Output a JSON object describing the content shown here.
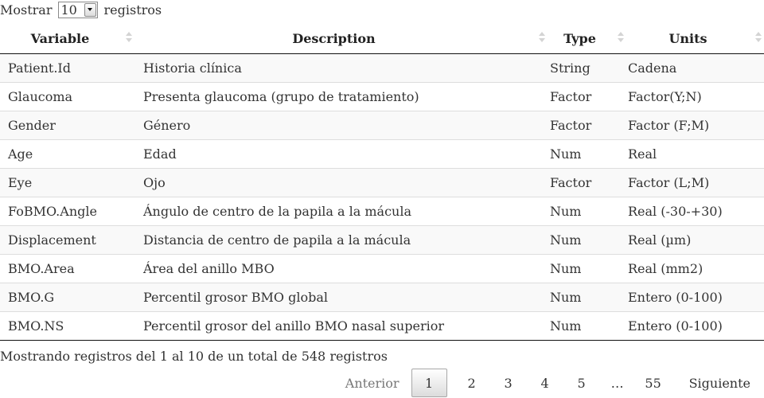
{
  "length_menu": {
    "prefix": "Mostrar",
    "selected": "10",
    "suffix": "registros"
  },
  "table": {
    "columns": [
      "Variable",
      "Description",
      "Type",
      "Units"
    ],
    "rows": [
      [
        "Patient.Id",
        "Historia clínica",
        "String",
        "Cadena"
      ],
      [
        "Glaucoma",
        "Presenta glaucoma (grupo de tratamiento)",
        "Factor",
        "Factor(Y;N)"
      ],
      [
        "Gender",
        "Género",
        "Factor",
        "Factor (F;M)"
      ],
      [
        "Age",
        "Edad",
        "Num",
        "Real"
      ],
      [
        "Eye",
        "Ojo",
        "Factor",
        "Factor (L;M)"
      ],
      [
        "FoBMO.Angle",
        "Ángulo de centro de la papila a la mácula",
        "Num",
        "Real (-30-+30)"
      ],
      [
        "Displacement",
        "Distancia de centro de papila a la mácula",
        "Num",
        "Real (µm)"
      ],
      [
        "BMO.Area",
        "Área del anillo MBO",
        "Num",
        "Real (mm2)"
      ],
      [
        "BMO.G",
        "Percentil grosor BMO global",
        "Num",
        "Entero (0-100)"
      ],
      [
        "BMO.NS",
        "Percentil grosor del anillo BMO nasal superior",
        "Num",
        "Entero (0-100)"
      ]
    ]
  },
  "info": "Mostrando registros del 1 al 10 de un total de 548 registros",
  "pagination": {
    "previous": "Anterior",
    "pages": [
      "1",
      "2",
      "3",
      "4",
      "5"
    ],
    "current": "1",
    "ellipsis": "…",
    "last": "55",
    "next": "Siguiente"
  }
}
